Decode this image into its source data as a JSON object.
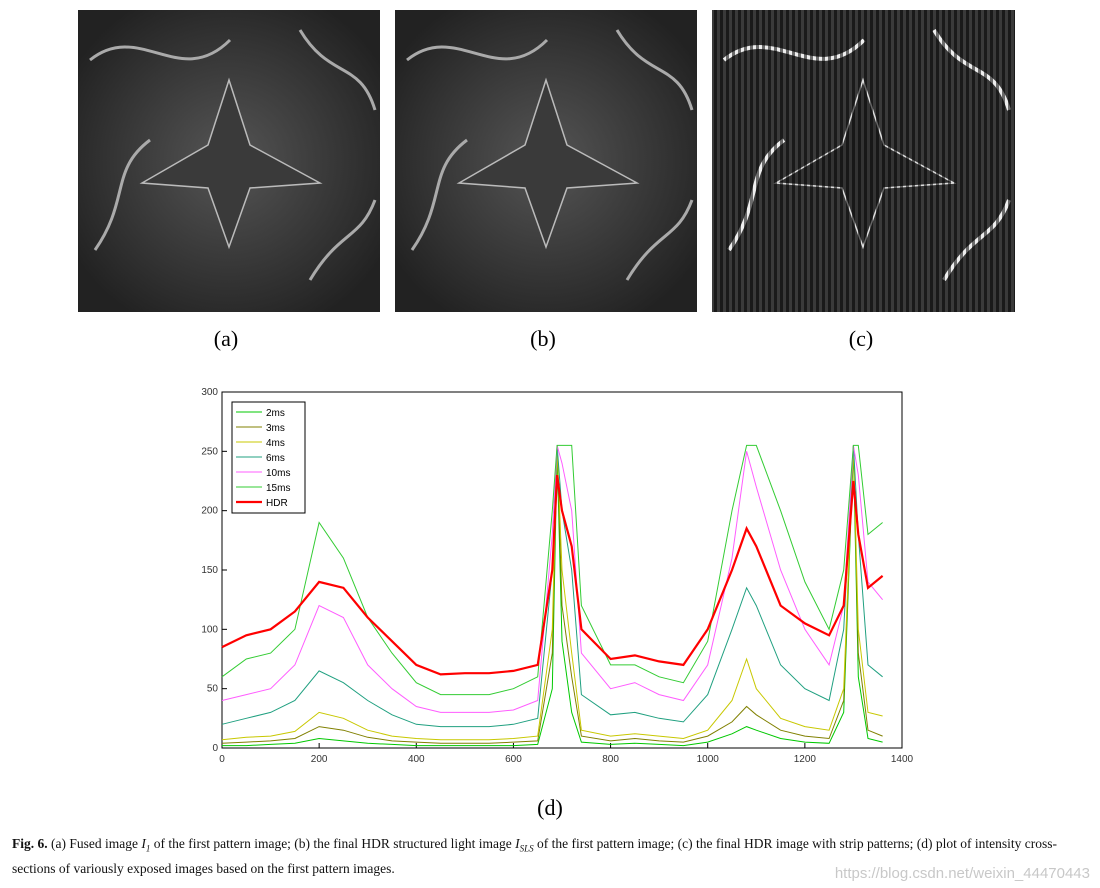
{
  "panels": [
    "(a)",
    "(b)",
    "(c)"
  ],
  "chart_data": {
    "type": "line",
    "x": [
      0,
      50,
      100,
      150,
      200,
      250,
      300,
      350,
      400,
      450,
      500,
      550,
      600,
      650,
      680,
      690,
      700,
      720,
      740,
      800,
      850,
      900,
      950,
      1000,
      1050,
      1080,
      1100,
      1150,
      1200,
      1250,
      1280,
      1300,
      1310,
      1330,
      1360
    ],
    "series": [
      {
        "name": "2ms",
        "color": "#00c800",
        "values": [
          2,
          2,
          3,
          4,
          8,
          6,
          4,
          3,
          2,
          2,
          2,
          2,
          2,
          3,
          50,
          250,
          90,
          30,
          5,
          3,
          4,
          3,
          2,
          5,
          12,
          18,
          15,
          8,
          5,
          4,
          30,
          250,
          60,
          8,
          5
        ]
      },
      {
        "name": "3ms",
        "color": "#808000",
        "values": [
          4,
          5,
          6,
          8,
          18,
          15,
          9,
          6,
          5,
          4,
          4,
          4,
          5,
          6,
          80,
          255,
          120,
          60,
          10,
          6,
          8,
          6,
          5,
          10,
          22,
          35,
          28,
          15,
          10,
          8,
          40,
          255,
          80,
          15,
          10
        ]
      },
      {
        "name": "4ms",
        "color": "#c8c800",
        "values": [
          7,
          9,
          10,
          14,
          30,
          25,
          15,
          10,
          8,
          7,
          7,
          7,
          8,
          10,
          100,
          255,
          150,
          80,
          15,
          10,
          12,
          10,
          8,
          15,
          40,
          75,
          50,
          25,
          18,
          15,
          50,
          255,
          100,
          30,
          27
        ]
      },
      {
        "name": "6ms",
        "color": "#20a080",
        "values": [
          20,
          25,
          30,
          40,
          65,
          55,
          40,
          28,
          20,
          18,
          18,
          18,
          20,
          25,
          150,
          255,
          200,
          150,
          45,
          28,
          30,
          25,
          22,
          45,
          100,
          135,
          120,
          70,
          50,
          40,
          100,
          255,
          180,
          70,
          60
        ]
      },
      {
        "name": "10ms",
        "color": "#ff5cff",
        "values": [
          40,
          45,
          50,
          70,
          120,
          110,
          70,
          50,
          35,
          30,
          30,
          30,
          32,
          40,
          180,
          255,
          240,
          200,
          80,
          50,
          55,
          45,
          40,
          70,
          160,
          250,
          220,
          150,
          100,
          70,
          120,
          255,
          230,
          140,
          125
        ]
      },
      {
        "name": "15ms",
        "color": "#33cc33",
        "values": [
          60,
          75,
          80,
          100,
          190,
          160,
          110,
          80,
          55,
          45,
          45,
          45,
          50,
          60,
          200,
          255,
          255,
          255,
          120,
          70,
          70,
          60,
          55,
          90,
          200,
          255,
          255,
          200,
          140,
          100,
          150,
          255,
          255,
          180,
          190
        ]
      },
      {
        "name": "HDR",
        "color": "#ff0000",
        "values": [
          85,
          95,
          100,
          115,
          140,
          135,
          110,
          90,
          70,
          62,
          63,
          63,
          65,
          70,
          150,
          230,
          200,
          170,
          100,
          75,
          78,
          73,
          70,
          100,
          150,
          185,
          170,
          120,
          105,
          95,
          120,
          225,
          180,
          135,
          145
        ]
      }
    ],
    "xlim": [
      0,
      1400
    ],
    "ylim": [
      0,
      300
    ],
    "xticks": [
      0,
      200,
      400,
      600,
      800,
      1000,
      1200,
      1400
    ],
    "yticks": [
      0,
      50,
      100,
      150,
      200,
      250,
      300
    ],
    "legend": "upper left"
  },
  "chart_label": "(d)",
  "caption": {
    "label": "Fig. 6.",
    "parts": [
      " (a) Fused image ",
      "I",
      "1",
      " of the first pattern image; (b) the final HDR structured light image ",
      "I",
      "SLS",
      " of the first pattern image; (c) the final HDR image with strip patterns; (d) plot of intensity cross-sections of variously exposed images based on the first pattern images."
    ]
  },
  "watermark": "https://blog.csdn.net/weixin_44470443"
}
